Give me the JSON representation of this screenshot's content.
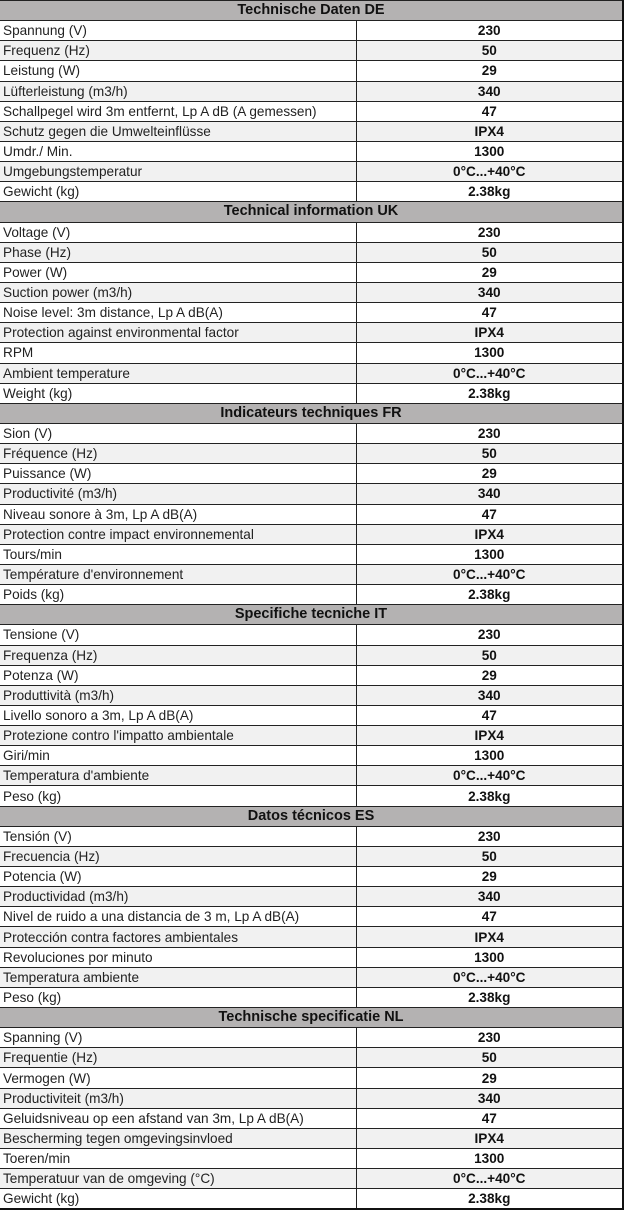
{
  "sections": [
    {
      "title": "Technische Daten DE",
      "rows": [
        {
          "label": "Spannung (V)",
          "value": "230"
        },
        {
          "label": "Frequenz (Hz)",
          "value": "50"
        },
        {
          "label": "Leistung (W)",
          "value": "29"
        },
        {
          "label": "Lüfterleistung (m3/h)",
          "value": "340"
        },
        {
          "label": "Schallpegel wird 3m entfernt, Lp A dB (A gemessen)",
          "value": "47"
        },
        {
          "label": "Schutz gegen die Umwelteinflüsse",
          "value": "IPX4"
        },
        {
          "label": "Umdr./ Min.",
          "value": "1300"
        },
        {
          "label": "Umgebungstemperatur",
          "value": "0°C...+40°C"
        },
        {
          "label": "Gewicht (kg)",
          "value": "2.38kg"
        }
      ]
    },
    {
      "title": "Technical information UK",
      "rows": [
        {
          "label": "Voltage (V)",
          "value": "230"
        },
        {
          "label": "Phase (Hz)",
          "value": "50"
        },
        {
          "label": "Power (W)",
          "value": "29"
        },
        {
          "label": "Suction power (m3/h)",
          "value": "340"
        },
        {
          "label": "Noise level: 3m distance, Lp A dB(A)",
          "value": "47"
        },
        {
          "label": "Protection against environmental factor",
          "value": "IPX4"
        },
        {
          "label": "RPM",
          "value": "1300"
        },
        {
          "label": "Ambient temperature",
          "value": "0°C...+40°C"
        },
        {
          "label": "Weight (kg)",
          "value": "2.38kg"
        }
      ]
    },
    {
      "title": "Indicateurs techniques FR",
      "rows": [
        {
          "label": "Sion (V)",
          "value": "230"
        },
        {
          "label": "Fréquence (Hz)",
          "value": "50"
        },
        {
          "label": "Puissance (W)",
          "value": "29"
        },
        {
          "label": "Productivité (m3/h)",
          "value": "340"
        },
        {
          "label": "Niveau sonore à 3m, Lp A dB(A)",
          "value": "47"
        },
        {
          "label": "Protection contre impact environnemental",
          "value": "IPX4"
        },
        {
          "label": "Tours/min",
          "value": "1300"
        },
        {
          "label": "Température d'environnement",
          "value": "0°C...+40°C"
        },
        {
          "label": "Poids (kg)",
          "value": "2.38kg"
        }
      ]
    },
    {
      "title": "Specifiche tecniche IT",
      "rows": [
        {
          "label": "Tensione (V)",
          "value": "230"
        },
        {
          "label": "Frequenza (Hz)",
          "value": "50"
        },
        {
          "label": "Potenza (W)",
          "value": "29"
        },
        {
          "label": "Produttività (m3/h)",
          "value": "340"
        },
        {
          "label": "Livello sonoro a 3m, Lp A dB(A)",
          "value": "47"
        },
        {
          "label": "Protezione contro l'impatto ambientale",
          "value": "IPX4"
        },
        {
          "label": "Giri/min",
          "value": "1300"
        },
        {
          "label": "Temperatura d'ambiente",
          "value": "0°C...+40°C"
        },
        {
          "label": "Peso (kg)",
          "value": "2.38kg"
        }
      ]
    },
    {
      "title": "Datos técnicos ES",
      "rows": [
        {
          "label": "Tensión (V)",
          "value": "230"
        },
        {
          "label": "Frecuencia (Hz)",
          "value": "50"
        },
        {
          "label": "Potencia (W)",
          "value": "29"
        },
        {
          "label": "Productividad (m3/h)",
          "value": "340"
        },
        {
          "label": "Nivel de ruido a una distancia de 3 m, Lp A dB(A)",
          "value": "47"
        },
        {
          "label": "Protección contra factores ambientales",
          "value": "IPX4"
        },
        {
          "label": "Revoluciones por minuto",
          "value": "1300"
        },
        {
          "label": "Temperatura ambiente",
          "value": "0°C...+40°C"
        },
        {
          "label": "Peso (kg)",
          "value": "2.38kg"
        }
      ]
    },
    {
      "title": "Technische specificatie NL",
      "rows": [
        {
          "label": "Spanning (V)",
          "value": "230"
        },
        {
          "label": "Frequentie (Hz)",
          "value": "50"
        },
        {
          "label": "Vermogen (W)",
          "value": "29"
        },
        {
          "label": "Productiviteit (m3/h)",
          "value": "340"
        },
        {
          "label": "Geluidsniveau op een afstand van 3m, Lp A dB(A)",
          "value": "47"
        },
        {
          "label": "Bescherming tegen omgevingsinvloed",
          "value": "IPX4"
        },
        {
          "label": "Toeren/min",
          "value": "1300"
        },
        {
          "label": "Temperatuur van de omgeving (°C)",
          "value": "0°C...+40°C"
        },
        {
          "label": "Gewicht (kg)",
          "value": "2.38kg"
        }
      ]
    }
  ]
}
